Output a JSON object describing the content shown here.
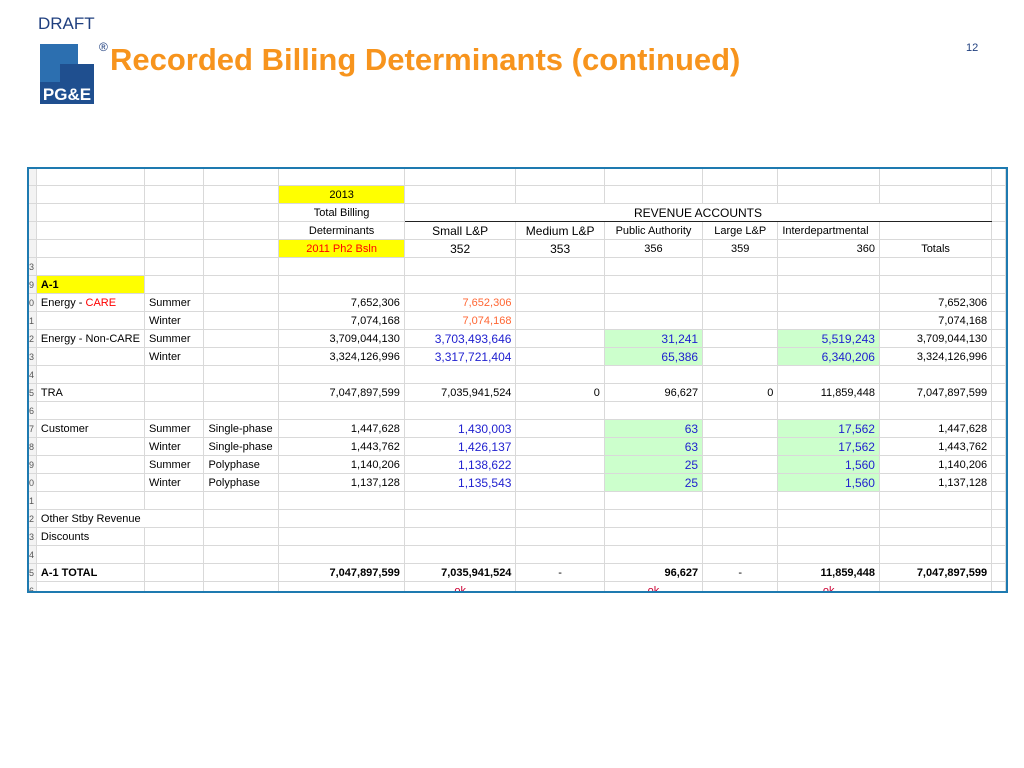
{
  "slide": {
    "draft": "DRAFT",
    "title": "Recorded Billing Determinants (continued)",
    "page_number": "12",
    "logo_text": "PG&E",
    "logo_mark": "®"
  },
  "table": {
    "header": {
      "year": "2013",
      "total_billing": "Total Billing",
      "determinants": "Determinants",
      "basis": "2011 Ph2 Bsln",
      "revenue_accounts": "REVENUE ACCOUNTS",
      "columns": [
        "Small L&P",
        "Medium L&P",
        "Public Authority",
        "Large L&P",
        "Interdepartmental",
        ""
      ],
      "codes": [
        "352",
        "353",
        "356",
        "359",
        "360",
        "Totals"
      ]
    },
    "row_numbers": [
      "3",
      "9",
      "0",
      "1",
      "2",
      "3",
      "4",
      "5",
      "6",
      "7",
      "8",
      "9",
      "0",
      "1",
      "2",
      "3",
      "4",
      "5",
      "6",
      "7"
    ],
    "section": "A-1",
    "care_prefix": "Energy - ",
    "care_word": "CARE",
    "rows": [
      {
        "label": "",
        "season": "Summer",
        "type": "",
        "total": "7,652,306",
        "small": "7,652,306",
        "medium": "",
        "public": "",
        "large": "",
        "interdept": "",
        "totals": "7,652,306"
      },
      {
        "label": "",
        "season": "Winter",
        "type": "",
        "total": "7,074,168",
        "small": "7,074,168",
        "medium": "",
        "public": "",
        "large": "",
        "interdept": "",
        "totals": "7,074,168"
      },
      {
        "label": "Energy - Non-CARE",
        "season": "Summer",
        "type": "",
        "total": "3,709,044,130",
        "small": "3,703,493,646",
        "medium": "",
        "public": "31,241",
        "large": "",
        "interdept": "5,519,243",
        "totals": "3,709,044,130"
      },
      {
        "label": "",
        "season": "Winter",
        "type": "",
        "total": "3,324,126,996",
        "small": "3,317,721,404",
        "medium": "",
        "public": "65,386",
        "large": "",
        "interdept": "6,340,206",
        "totals": "3,324,126,996"
      },
      {
        "label": "TRA",
        "season": "",
        "type": "",
        "total": "7,047,897,599",
        "small": "7,035,941,524",
        "medium": "0",
        "public": "96,627",
        "large": "0",
        "interdept": "11,859,448",
        "totals": "7,047,897,599"
      },
      {
        "label": "Customer",
        "season": "Summer",
        "type": "Single-phase",
        "total": "1,447,628",
        "small": "1,430,003",
        "medium": "",
        "public": "63",
        "large": "",
        "interdept": "17,562",
        "totals": "1,447,628"
      },
      {
        "label": "",
        "season": "Winter",
        "type": "Single-phase",
        "total": "1,443,762",
        "small": "1,426,137",
        "medium": "",
        "public": "63",
        "large": "",
        "interdept": "17,562",
        "totals": "1,443,762"
      },
      {
        "label": "",
        "season": "Summer",
        "type": "Polyphase",
        "total": "1,140,206",
        "small": "1,138,622",
        "medium": "",
        "public": "25",
        "large": "",
        "interdept": "1,560",
        "totals": "1,140,206"
      },
      {
        "label": "",
        "season": "Winter",
        "type": "Polyphase",
        "total": "1,137,128",
        "small": "1,135,543",
        "medium": "",
        "public": "25",
        "large": "",
        "interdept": "1,560",
        "totals": "1,137,128"
      },
      {
        "label": "Other Stby Revenue"
      },
      {
        "label": "Discounts"
      },
      {
        "label": "A-1 TOTAL",
        "season": "",
        "type": "",
        "total": "7,047,897,599",
        "small": "7,035,941,524",
        "medium": "-",
        "public": "96,627",
        "large": "-",
        "interdept": "11,859,448",
        "totals": "7,047,897,599"
      }
    ],
    "ok": "ok"
  },
  "colors": {
    "title": "#f7941d",
    "brand_blue": "#1f3f7f",
    "sheet_border": "#1e7ab0",
    "highlight_yellow": "#ffff00",
    "highlight_green": "#ccffcc"
  }
}
